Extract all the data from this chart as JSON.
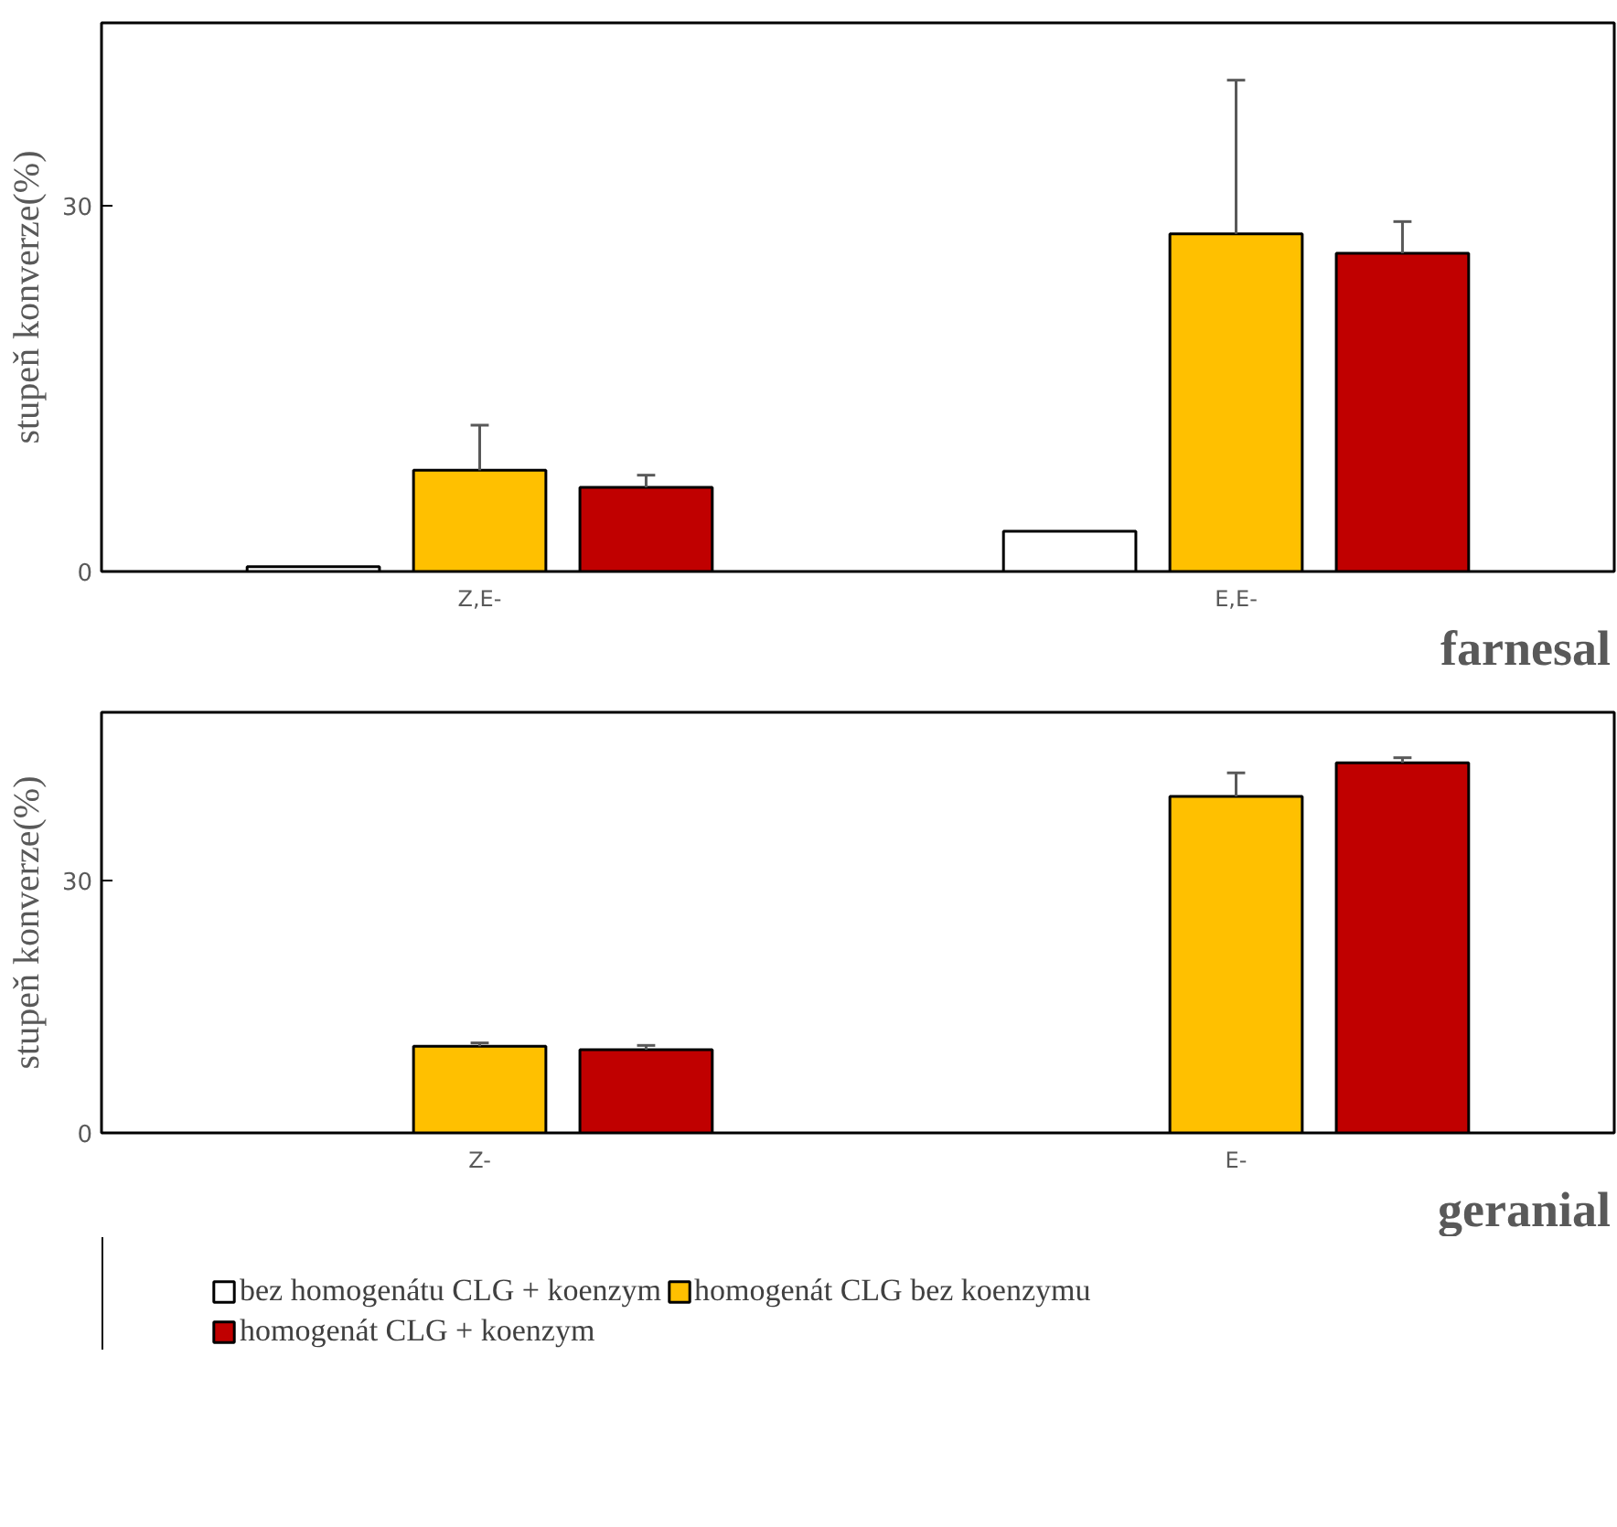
{
  "chart_data": [
    {
      "type": "bar",
      "title": "farnesal",
      "ylabel": "stupeň konverze(%)",
      "categories": [
        "Z,E-",
        "E,E-"
      ],
      "ylim": [
        0,
        45
      ],
      "yticks": [
        0,
        30
      ],
      "grid": false,
      "legend": false,
      "series": [
        {
          "color": "#ffffff",
          "values": [
            0.4,
            3.3
          ]
        },
        {
          "color": "#ffc000",
          "values": [
            8.3,
            27.7
          ],
          "errors": [
            [
              8.3,
              12.0
            ],
            [
              27.7,
              40.3
            ]
          ]
        },
        {
          "color": "#c00000",
          "values": [
            6.9,
            26.1
          ],
          "errors": [
            [
              6.9,
              7.9
            ],
            [
              26.1,
              28.7
            ]
          ]
        }
      ]
    },
    {
      "type": "bar",
      "title": "geranial",
      "ylabel": "stupeň konverze(%)",
      "categories": [
        "Z-",
        "E-"
      ],
      "ylim": [
        0,
        50
      ],
      "yticks": [
        0,
        30
      ],
      "grid": false,
      "legend": "bottom",
      "series": [
        {
          "name": "bez homogenátu CLG + koenzym",
          "color": "#ffffff",
          "values": [
            null,
            null
          ]
        },
        {
          "name": "homogenát CLG bez koenzymu",
          "color": "#ffc000",
          "values": [
            10.3,
            40.0
          ],
          "errors": [
            [
              10.3,
              10.7
            ],
            [
              40.0,
              42.8
            ]
          ]
        },
        {
          "name": "homogenát CLG + koenzym",
          "color": "#c00000",
          "values": [
            9.9,
            44.0
          ],
          "errors": [
            [
              9.9,
              10.4
            ],
            [
              44.0,
              44.6
            ]
          ]
        }
      ]
    }
  ]
}
